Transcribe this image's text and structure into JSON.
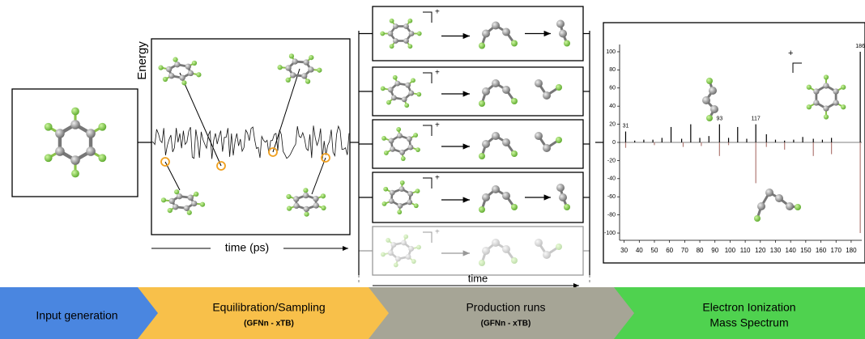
{
  "stages": [
    {
      "label": "Input generation"
    },
    {
      "label": "Equilibration/Sampling",
      "method": "(GFNn - xTB)"
    },
    {
      "label": "Production runs",
      "method": "(GFNn - xTB)"
    },
    {
      "label": "Electron Ionization",
      "label2": "Mass Spectrum"
    }
  ],
  "energy_panel": {
    "y_label": "Energy",
    "x_label": "time (ps)"
  },
  "production": {
    "x_label": "time",
    "charge": "+"
  },
  "spectrum": {
    "xlim": [
      27,
      187
    ],
    "ylim": [
      -108,
      108
    ],
    "xticks": [
      30,
      40,
      50,
      60,
      70,
      80,
      90,
      100,
      110,
      120,
      130,
      140,
      150,
      160,
      170,
      180
    ],
    "yticks": [
      100,
      80,
      60,
      40,
      20,
      0,
      -20,
      -40,
      -60,
      -80,
      -100
    ],
    "charge": "+",
    "peak_labels": [
      {
        "mz": 31,
        "label": "31"
      },
      {
        "mz": 93,
        "label": "93"
      },
      {
        "mz": 117,
        "label": "117"
      },
      {
        "mz": 186,
        "label": "186"
      }
    ],
    "computed": {
      "color": "#000000",
      "mz": [
        31,
        37,
        43,
        49,
        55,
        61,
        68,
        74,
        80,
        86,
        93,
        99,
        105,
        111,
        117,
        124,
        130,
        136,
        142,
        148,
        155,
        161,
        167,
        186
      ],
      "intensity": [
        12,
        2,
        3,
        3,
        5,
        17,
        4,
        20,
        5,
        7,
        20,
        5,
        17,
        4,
        20,
        9,
        3,
        2,
        3,
        6,
        4,
        3,
        5,
        100
      ]
    },
    "experimental": {
      "color": "#b07a74",
      "mz": [
        31,
        50,
        69,
        81,
        93,
        99,
        117,
        124,
        136,
        155,
        167,
        186
      ],
      "intensity": [
        -6,
        -3,
        -5,
        -4,
        -15,
        -3,
        -45,
        -5,
        -8,
        -15,
        -13,
        -100
      ]
    }
  }
}
